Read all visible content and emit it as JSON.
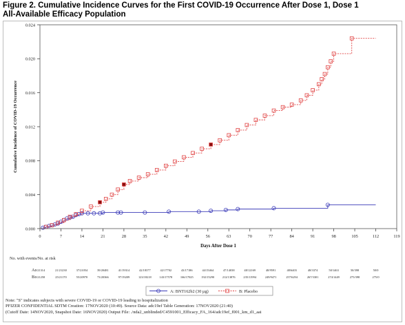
{
  "figure": {
    "title_line1": "Figure 2. Cumulative Incidence Curves for the First COVID-19 Occurrence After Dose 1, Dose 1",
    "title_line2": "All-Available Efficacy Population"
  },
  "chart_data": {
    "type": "line",
    "xlabel": "Days After Dose 1",
    "ylabel": "Cumulative Incidence of COVID-19 Occurrence",
    "xlim": [
      0,
      119
    ],
    "ylim": [
      0,
      0.024
    ],
    "x_ticks": [
      0,
      7,
      14,
      21,
      28,
      35,
      42,
      49,
      56,
      63,
      70,
      77,
      84,
      91,
      98,
      105,
      112,
      119
    ],
    "y_ticks": [
      "0.000",
      "0.004",
      "0.008",
      "0.012",
      "0.016",
      "0.020",
      "0.024"
    ],
    "grid": false,
    "series": [
      {
        "name": "A: BNT162b2 (30 µg)",
        "color": "#3b3bb8",
        "line_style": "solid",
        "marker": "circle",
        "points": [
          [
            0,
            0.0
          ],
          [
            1,
            0.0001
          ],
          [
            2,
            0.0002
          ],
          [
            3,
            0.0003
          ],
          [
            4,
            0.0004
          ],
          [
            5,
            0.0005
          ],
          [
            6,
            0.0006
          ],
          [
            7,
            0.0008
          ],
          [
            8,
            0.001
          ],
          [
            9,
            0.0012
          ],
          [
            10,
            0.0013
          ],
          [
            11,
            0.0014
          ],
          [
            12,
            0.0016
          ],
          [
            13,
            0.0017
          ],
          [
            14,
            0.0018
          ],
          [
            16,
            0.0018
          ],
          [
            18,
            0.0018
          ],
          [
            20,
            0.0018
          ],
          [
            21,
            0.0019
          ],
          [
            26,
            0.0019
          ],
          [
            27,
            0.0019
          ],
          [
            35,
            0.0019
          ],
          [
            43,
            0.002
          ],
          [
            53,
            0.002
          ],
          [
            57,
            0.0021
          ],
          [
            62,
            0.0022
          ],
          [
            66,
            0.0023
          ],
          [
            78,
            0.0024
          ],
          [
            96,
            0.0028
          ],
          [
            112,
            0.0028
          ]
        ],
        "severe_case_days": [
          63
        ]
      },
      {
        "name": "B: Placebo",
        "color": "#e04040",
        "line_style": "dashed",
        "marker": "square",
        "points": [
          [
            0,
            0.0
          ],
          [
            2,
            0.0002
          ],
          [
            4,
            0.0004
          ],
          [
            6,
            0.0007
          ],
          [
            8,
            0.001
          ],
          [
            10,
            0.0014
          ],
          [
            12,
            0.0017
          ],
          [
            14,
            0.0021
          ],
          [
            17,
            0.0026
          ],
          [
            20,
            0.0031
          ],
          [
            22,
            0.0035
          ],
          [
            24,
            0.004
          ],
          [
            26,
            0.0046
          ],
          [
            28,
            0.0052
          ],
          [
            30,
            0.0056
          ],
          [
            33,
            0.006
          ],
          [
            36,
            0.0064
          ],
          [
            39,
            0.0069
          ],
          [
            42,
            0.0074
          ],
          [
            45,
            0.0079
          ],
          [
            48,
            0.0084
          ],
          [
            51,
            0.0089
          ],
          [
            54,
            0.0094
          ],
          [
            57,
            0.0099
          ],
          [
            60,
            0.0104
          ],
          [
            63,
            0.011
          ],
          [
            66,
            0.0116
          ],
          [
            69,
            0.0122
          ],
          [
            72,
            0.0128
          ],
          [
            75,
            0.0133
          ],
          [
            78,
            0.0139
          ],
          [
            81,
            0.0143
          ],
          [
            84,
            0.0146
          ],
          [
            87,
            0.0151
          ],
          [
            89,
            0.0157
          ],
          [
            91,
            0.0163
          ],
          [
            93,
            0.017
          ],
          [
            94,
            0.0176
          ],
          [
            95,
            0.0182
          ],
          [
            96,
            0.019
          ],
          [
            97,
            0.0197
          ],
          [
            98,
            0.0206
          ],
          [
            104,
            0.0224
          ],
          [
            112,
            0.0224
          ]
        ],
        "severe_case_days": [
          7,
          20,
          28,
          57,
          70
        ]
      }
    ],
    "risk_table": {
      "header": "No. with events/No. at risk",
      "rows": [
        {
          "label": "A:",
          "values": [
            "0/21314",
            "21/21230",
            "37/21054",
            "39/20481",
            "41/19314",
            "42/18377",
            "42/17702",
            "43/17186",
            "44/15464",
            "47/14038",
            "48/12169",
            "48/9591",
            "48/6403",
            "48/3374",
            "50/1463",
            "50/398",
            "50/0"
          ]
        },
        {
          "label": "B:",
          "values": [
            "0/21258",
            "25/21170",
            "55/20970",
            "73/20366",
            "97/19209",
            "123/18218",
            "143/17578",
            "166/17025",
            "192/15290",
            "212/13876",
            "235/11994",
            "249/9471",
            "257/6294",
            "267/3301",
            "274/1449",
            "275/398",
            "275/0"
          ]
        }
      ]
    },
    "legend_position": "bottom"
  },
  "notes": [
    "Note: \"S\" indicates subjects with severe COVID-19 or COVID-19 leading to hospitalization",
    "PFIZER CONFIDENTIAL  SDTM Creation: 17NOV2020 (10:49). Source Data: adc19ef  Table Generation: 17NOV2020 (21:40)",
    "(Cutoff Date: 14NOV2020, Snapshot Date: 16NOV2020) Output File: ./nda2_unblinded/C4591001_Efficacy_FA_164/adc19ef_f001_km_d1_aai"
  ]
}
